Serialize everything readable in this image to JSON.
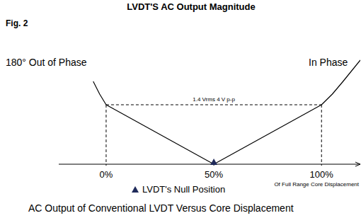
{
  "chart_data": {
    "type": "line",
    "title": "LVDT'S AC Output Magnitude",
    "figure_label": "Fig. 2",
    "caption": "AC Output of Conventional LVDT Versus Core Displacement",
    "x_label": "Of Full Range Core Displacement",
    "x": [
      -6,
      -3,
      0,
      50,
      100,
      105,
      110,
      118
    ],
    "series": [
      {
        "color": "#000000",
        "values": [
          1.95,
          1.65,
          1.4,
          0,
          1.4,
          1.65,
          1.95,
          2.45
        ]
      }
    ],
    "xlim": [
      -22,
      118
    ],
    "ylim": [
      0,
      2.5
    ],
    "xticks": [
      {
        "value": 0,
        "label": "0%"
      },
      {
        "value": 50,
        "label": "50%"
      },
      {
        "value": 100,
        "label": "100%"
      }
    ],
    "yticks": [],
    "tick_labels": "x",
    "phase_labels": {
      "left": "180° Out of Phase",
      "right": "In Phase"
    },
    "guides": {
      "y": 1.4,
      "x": [
        0,
        100
      ],
      "label": "1.4 Vrms 4 V p-p"
    },
    "null_marker": {
      "x": 50,
      "y": 0,
      "label": "LVDT's Null Position",
      "color": "#1f2a5a"
    }
  }
}
